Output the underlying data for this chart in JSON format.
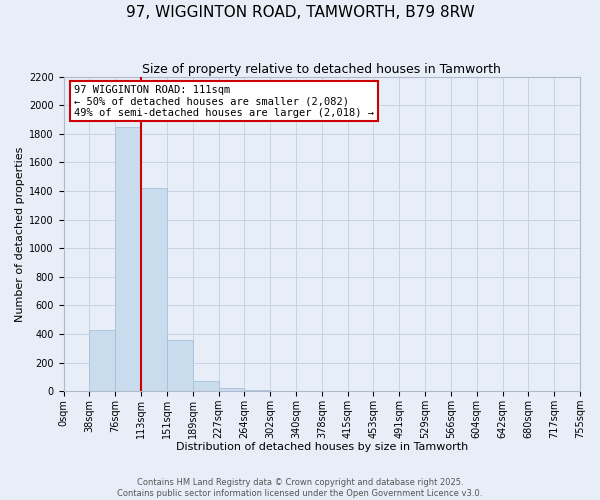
{
  "title": "97, WIGGINTON ROAD, TAMWORTH, B79 8RW",
  "subtitle": "Size of property relative to detached houses in Tamworth",
  "xlabel": "Distribution of detached houses by size in Tamworth",
  "ylabel": "Number of detached properties",
  "bin_labels": [
    "0sqm",
    "38sqm",
    "76sqm",
    "113sqm",
    "151sqm",
    "189sqm",
    "227sqm",
    "264sqm",
    "302sqm",
    "340sqm",
    "378sqm",
    "415sqm",
    "453sqm",
    "491sqm",
    "529sqm",
    "566sqm",
    "604sqm",
    "642sqm",
    "680sqm",
    "717sqm",
    "755sqm"
  ],
  "bar_values": [
    2,
    430,
    1850,
    1420,
    355,
    70,
    25,
    5,
    2,
    1,
    0,
    0,
    0,
    0,
    0,
    0,
    0,
    0,
    0,
    0
  ],
  "bar_color": "#c8dced",
  "bar_edge_color": "#aabfd8",
  "vline_color": "#cc0000",
  "vline_x": 3.0,
  "annotation_text": "97 WIGGINTON ROAD: 111sqm\n← 50% of detached houses are smaller (2,082)\n49% of semi-detached houses are larger (2,018) →",
  "annotation_box_color": "#ffffff",
  "annotation_box_edge_color": "#cc0000",
  "ylim": [
    0,
    2200
  ],
  "yticks": [
    0,
    200,
    400,
    600,
    800,
    1000,
    1200,
    1400,
    1600,
    1800,
    2000,
    2200
  ],
  "grid_color": "#c8d4e4",
  "background_color": "#e8eef8",
  "title_fontsize": 11,
  "subtitle_fontsize": 9,
  "axis_label_fontsize": 8,
  "tick_fontsize": 7,
  "annotation_fontsize": 7.5,
  "copyright_text": "Contains HM Land Registry data © Crown copyright and database right 2025.\nContains public sector information licensed under the Open Government Licence v3.0."
}
